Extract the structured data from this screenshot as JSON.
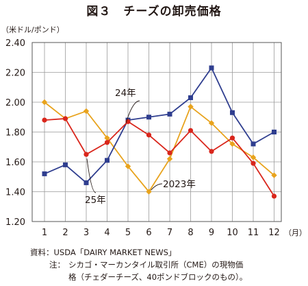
{
  "title": "図３　チーズの卸売価格",
  "chart_data": {
    "type": "line",
    "ylabel": "（米ドル/ポンド）",
    "xlabel": "（月）",
    "x": [
      1,
      2,
      3,
      4,
      5,
      6,
      7,
      8,
      9,
      10,
      11,
      12
    ],
    "x_tick_labels": [
      "1",
      "2",
      "3",
      "4",
      "5",
      "6",
      "7",
      "8",
      "9",
      "10",
      "11",
      "12"
    ],
    "ylim": [
      1.2,
      2.4
    ],
    "y_ticks": [
      1.2,
      1.4,
      1.6,
      1.8,
      2.0,
      2.2,
      2.4
    ],
    "y_tick_labels": [
      "1.20",
      "1.40",
      "1.60",
      "1.80",
      "2.00",
      "2.20",
      "2.40"
    ],
    "grid": true,
    "legend": "none (series labeled directly on the plot)",
    "series": [
      {
        "name": "2023年",
        "color": "#e8a31d",
        "marker": "diamond",
        "values": [
          2.0,
          1.89,
          1.94,
          1.76,
          1.57,
          1.4,
          1.62,
          1.97,
          1.86,
          1.72,
          1.63,
          1.51
        ]
      },
      {
        "name": "24年",
        "color": "#2f3e8f",
        "marker": "square",
        "values": [
          1.52,
          1.58,
          1.46,
          1.61,
          1.88,
          1.9,
          1.92,
          2.03,
          2.23,
          1.93,
          1.72,
          1.8
        ]
      },
      {
        "name": "25年",
        "color": "#d9261c",
        "marker": "circle",
        "values": [
          1.88,
          1.89,
          1.65,
          1.73,
          1.87,
          1.78,
          1.66,
          1.81,
          1.67,
          1.76,
          1.59,
          1.37
        ]
      }
    ]
  },
  "notes": {
    "source": "資料：USDA「DAIRY MARKET NEWS」",
    "label": "注：",
    "line1": "シカゴ・マーカンタイル取引所（CME）の現物価",
    "line2": "格（チェダーチーズ、40ポンドブロックのもの）。"
  }
}
